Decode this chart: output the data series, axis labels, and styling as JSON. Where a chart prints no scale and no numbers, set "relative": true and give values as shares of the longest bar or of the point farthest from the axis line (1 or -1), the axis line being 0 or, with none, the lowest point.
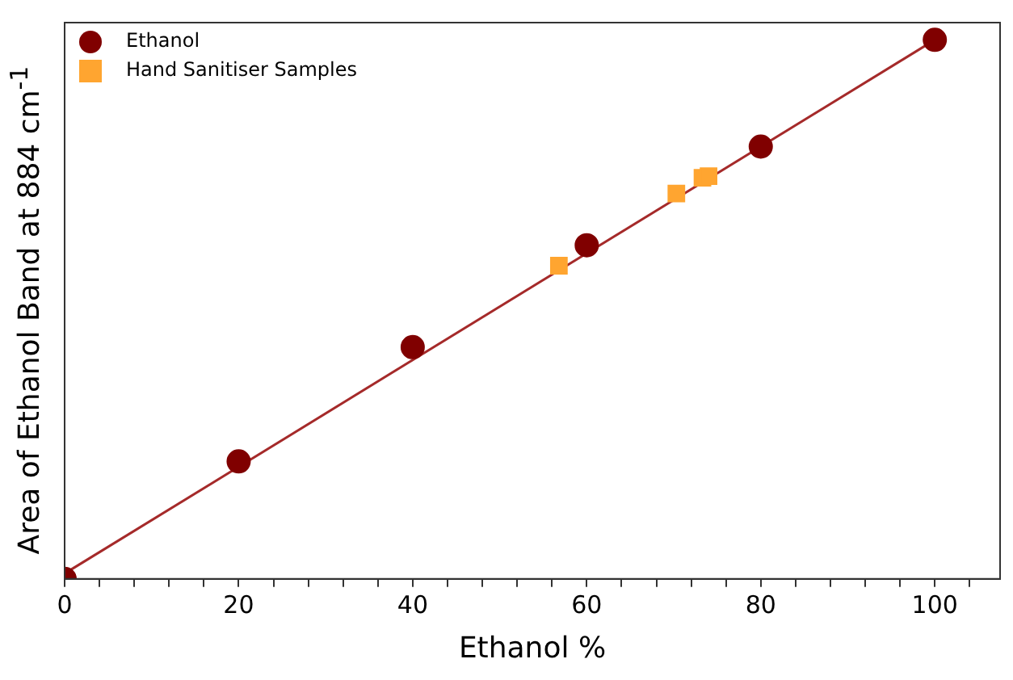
{
  "chart_data": {
    "type": "scatter",
    "xlabel": "Ethanol %",
    "ylabel": "Area of Ethanol Band at 884 cm$^{-1}$",
    "relative": true,
    "xlim": [
      0,
      107.5
    ],
    "xticks": [
      0,
      {
        "value": 4,
        "label": null
      },
      {
        "value": 8,
        "label": null
      },
      {
        "value": 12,
        "label": null
      },
      {
        "value": 16,
        "label": null
      },
      20,
      {
        "value": 24,
        "label": null
      },
      {
        "value": 28,
        "label": null
      },
      {
        "value": 32,
        "label": null
      },
      {
        "value": 36,
        "label": null
      },
      40,
      {
        "value": 44,
        "label": null
      },
      {
        "value": 48,
        "label": null
      },
      {
        "value": 52,
        "label": null
      },
      {
        "value": 56,
        "label": null
      },
      60,
      {
        "value": 64,
        "label": null
      },
      {
        "value": 68,
        "label": null
      },
      {
        "value": 72,
        "label": null
      },
      {
        "value": 76,
        "label": null
      },
      80,
      {
        "value": 84,
        "label": null
      },
      {
        "value": 88,
        "label": null
      },
      {
        "value": 92,
        "label": null
      },
      {
        "value": 96,
        "label": null
      },
      100,
      {
        "value": 104,
        "label": null
      }
    ],
    "grid": false,
    "legend": "top left",
    "series": [
      {
        "type": "line",
        "color": "#a52a2a",
        "x": [
          0,
          100
        ],
        "values": [
          0.01,
          1
        ],
        "marker": "none"
      },
      {
        "name": "Ethanol",
        "color": "#800000",
        "marker": "circle",
        "x": [
          0,
          20,
          40,
          60,
          80,
          100
        ],
        "values": [
          0,
          0.218,
          0.43,
          0.619,
          0.802,
          1
        ]
      },
      {
        "name": "Hand Sanitiser Samples",
        "color": "#ffa530",
        "marker": "square",
        "x": [
          56.8,
          70.3,
          73.3,
          74.0
        ],
        "values": [
          0.581,
          0.715,
          0.744,
          0.747
        ]
      }
    ]
  }
}
